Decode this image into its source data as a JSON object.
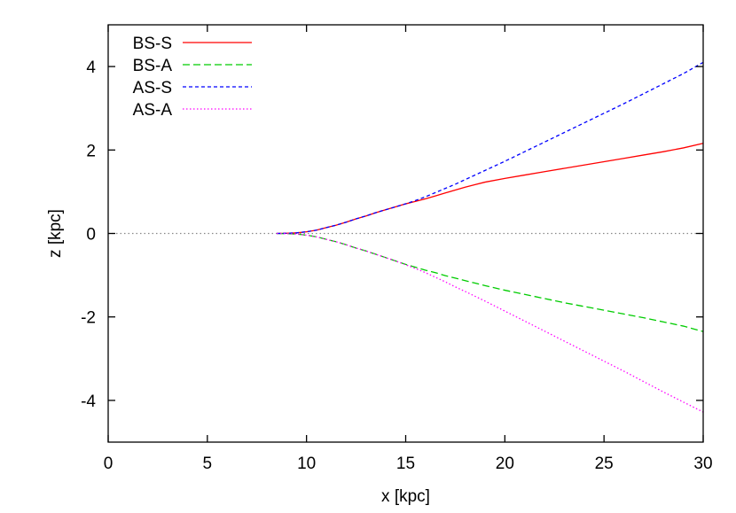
{
  "chart_data": {
    "type": "line",
    "title": "",
    "xlabel": "x [kpc]",
    "ylabel": "z [kpc]",
    "xlim": [
      0,
      30
    ],
    "ylim": [
      -5,
      5
    ],
    "xticks": [
      0,
      5,
      10,
      15,
      20,
      25,
      30
    ],
    "yticks": [
      -4,
      -2,
      0,
      2,
      4
    ],
    "xtick_labels": [
      "0",
      "5",
      "10",
      "15",
      "20",
      "25",
      "30"
    ],
    "ytick_labels": [
      "-4",
      "-2",
      "0",
      "2",
      "4"
    ],
    "grid": false,
    "legend_position": "top-left",
    "reference_line": {
      "y": 0,
      "style": "dotted",
      "color": "#888888"
    },
    "series": [
      {
        "name": "BS-S",
        "color": "#ff0000",
        "dash": "solid",
        "points": [
          [
            8.5,
            0
          ],
          [
            9,
            0.005
          ],
          [
            9.5,
            0.015
          ],
          [
            10,
            0.04
          ],
          [
            10.5,
            0.08
          ],
          [
            11,
            0.14
          ],
          [
            11.5,
            0.2
          ],
          [
            12,
            0.27
          ],
          [
            12.5,
            0.35
          ],
          [
            13,
            0.42
          ],
          [
            13.5,
            0.5
          ],
          [
            14,
            0.57
          ],
          [
            14.5,
            0.64
          ],
          [
            15,
            0.71
          ],
          [
            15.5,
            0.77
          ],
          [
            16,
            0.83
          ],
          [
            16.5,
            0.9
          ],
          [
            17,
            0.97
          ],
          [
            17.5,
            1.04
          ],
          [
            18,
            1.11
          ],
          [
            18.5,
            1.17
          ],
          [
            19,
            1.23
          ],
          [
            20,
            1.32
          ],
          [
            21,
            1.4
          ],
          [
            22,
            1.48
          ],
          [
            23,
            1.56
          ],
          [
            24,
            1.64
          ],
          [
            25,
            1.72
          ],
          [
            26,
            1.8
          ],
          [
            27,
            1.88
          ],
          [
            28,
            1.96
          ],
          [
            29,
            2.05
          ],
          [
            30,
            2.16
          ]
        ]
      },
      {
        "name": "BS-A",
        "color": "#00cc00",
        "dash": "dashed",
        "points": [
          [
            8.5,
            0
          ],
          [
            9,
            -0.005
          ],
          [
            9.5,
            -0.015
          ],
          [
            10,
            -0.04
          ],
          [
            10.5,
            -0.08
          ],
          [
            11,
            -0.14
          ],
          [
            11.5,
            -0.2
          ],
          [
            12,
            -0.27
          ],
          [
            12.5,
            -0.35
          ],
          [
            13,
            -0.42
          ],
          [
            13.5,
            -0.5
          ],
          [
            14,
            -0.58
          ],
          [
            14.5,
            -0.66
          ],
          [
            15,
            -0.74
          ],
          [
            15.5,
            -0.81
          ],
          [
            16,
            -0.88
          ],
          [
            16.5,
            -0.94
          ],
          [
            17,
            -1.01
          ],
          [
            17.5,
            -1.07
          ],
          [
            18,
            -1.13
          ],
          [
            18.5,
            -1.19
          ],
          [
            19,
            -1.25
          ],
          [
            20,
            -1.36
          ],
          [
            21,
            -1.46
          ],
          [
            22,
            -1.56
          ],
          [
            23,
            -1.66
          ],
          [
            24,
            -1.75
          ],
          [
            25,
            -1.84
          ],
          [
            26,
            -1.93
          ],
          [
            27,
            -2.02
          ],
          [
            28,
            -2.12
          ],
          [
            29,
            -2.22
          ],
          [
            30,
            -2.35
          ]
        ]
      },
      {
        "name": "AS-S",
        "color": "#0000ff",
        "dash": "short-dashed",
        "points": [
          [
            8.5,
            0
          ],
          [
            9,
            0.005
          ],
          [
            9.5,
            0.015
          ],
          [
            10,
            0.04
          ],
          [
            10.5,
            0.08
          ],
          [
            11,
            0.14
          ],
          [
            11.5,
            0.2
          ],
          [
            12,
            0.27
          ],
          [
            12.5,
            0.35
          ],
          [
            13,
            0.42
          ],
          [
            13.5,
            0.5
          ],
          [
            14,
            0.57
          ],
          [
            14.5,
            0.64
          ],
          [
            15,
            0.71
          ],
          [
            15.5,
            0.79
          ],
          [
            16,
            0.88
          ],
          [
            16.5,
            0.98
          ],
          [
            17,
            1.08
          ],
          [
            17.5,
            1.18
          ],
          [
            18,
            1.29
          ],
          [
            19,
            1.51
          ],
          [
            20,
            1.73
          ],
          [
            21,
            1.96
          ],
          [
            22,
            2.19
          ],
          [
            23,
            2.42
          ],
          [
            24,
            2.65
          ],
          [
            25,
            2.88
          ],
          [
            26,
            3.11
          ],
          [
            27,
            3.35
          ],
          [
            28,
            3.59
          ],
          [
            29,
            3.83
          ],
          [
            30,
            4.1
          ]
        ]
      },
      {
        "name": "AS-A",
        "color": "#ff00ff",
        "dash": "dotted",
        "points": [
          [
            8.5,
            0
          ],
          [
            9,
            -0.005
          ],
          [
            9.5,
            -0.015
          ],
          [
            10,
            -0.04
          ],
          [
            10.5,
            -0.08
          ],
          [
            11,
            -0.14
          ],
          [
            11.5,
            -0.2
          ],
          [
            12,
            -0.27
          ],
          [
            12.5,
            -0.35
          ],
          [
            13,
            -0.42
          ],
          [
            13.5,
            -0.5
          ],
          [
            14,
            -0.58
          ],
          [
            14.5,
            -0.66
          ],
          [
            15,
            -0.75
          ],
          [
            15.5,
            -0.84
          ],
          [
            16,
            -0.94
          ],
          [
            16.5,
            -1.05
          ],
          [
            17,
            -1.16
          ],
          [
            17.5,
            -1.28
          ],
          [
            18,
            -1.39
          ],
          [
            19,
            -1.62
          ],
          [
            20,
            -1.86
          ],
          [
            21,
            -2.1
          ],
          [
            22,
            -2.34
          ],
          [
            23,
            -2.58
          ],
          [
            24,
            -2.82
          ],
          [
            25,
            -3.06
          ],
          [
            26,
            -3.3
          ],
          [
            27,
            -3.55
          ],
          [
            28,
            -3.8
          ],
          [
            29,
            -4.04
          ],
          [
            30,
            -4.28
          ]
        ]
      }
    ]
  }
}
